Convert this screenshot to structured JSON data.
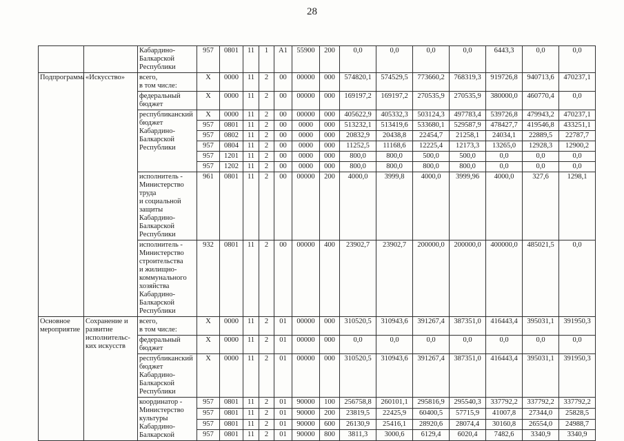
{
  "page": {
    "number": "28"
  },
  "table": {
    "sections": {
      "s1": {
        "category": "Подпрограмма",
        "name": "«Искусство»"
      },
      "s2": {
        "category": "Основное\nмероприятие",
        "name": "Сохранение и\nразвитие\nисполнительс-\nких искусств"
      }
    },
    "rows": {
      "r0": {
        "label": "Кабардино-\nБалкарской\nРеспублики",
        "codes": [
          "957",
          "0801",
          "11",
          "1",
          "А1",
          "55900",
          "200"
        ],
        "values": [
          "0,0",
          "0,0",
          "0,0",
          "0,0",
          "6443,3",
          "0,0",
          "0,0"
        ]
      },
      "r1": {
        "label": "всего,\nв том числе:",
        "codes": [
          "X",
          "0000",
          "11",
          "2",
          "00",
          "00000",
          "000"
        ],
        "values": [
          "574820,1",
          "574529,5",
          "773660,2",
          "768319,3",
          "919726,8",
          "940713,6",
          "470237,1"
        ]
      },
      "r2": {
        "label": "федеральный\nбюджет",
        "codes": [
          "X",
          "0000",
          "11",
          "2",
          "00",
          "00000",
          "000"
        ],
        "values": [
          "169197,2",
          "169197,2",
          "270535,9",
          "270535,9",
          "380000,0",
          "460770,4",
          "0,0"
        ]
      },
      "r3": {
        "label": "республиканский\nбюджет\nКабардино-\nБалкарской\nРеспублики"
      },
      "r3a": {
        "codes": [
          "X",
          "0000",
          "11",
          "2",
          "00",
          "00000",
          "000"
        ],
        "values": [
          "405622,9",
          "405332,3",
          "503124,3",
          "497783,4",
          "539726,8",
          "479943,2",
          "470237,1"
        ]
      },
      "r3b": {
        "codes": [
          "957",
          "0801",
          "11",
          "2",
          "00",
          "0000",
          "000"
        ],
        "values": [
          "513232,1",
          "513419,6",
          "533680,1",
          "529587,9",
          "478427,7",
          "419546,8",
          "433251,1"
        ]
      },
      "r3c": {
        "codes": [
          "957",
          "0802",
          "11",
          "2",
          "00",
          "0000",
          "000"
        ],
        "values": [
          "20832,9",
          "20438,8",
          "22454,7",
          "21258,1",
          "24034,1",
          "22889,5",
          "22787,7"
        ]
      },
      "r3d": {
        "codes": [
          "957",
          "0804",
          "11",
          "2",
          "00",
          "0000",
          "000"
        ],
        "values": [
          "11252,5",
          "11168,6",
          "12225,4",
          "12173,3",
          "13265,0",
          "12928,3",
          "12900,2"
        ]
      },
      "r3e": {
        "codes": [
          "957",
          "1201",
          "11",
          "2",
          "00",
          "0000",
          "000"
        ],
        "values": [
          "800,0",
          "800,0",
          "500,0",
          "500,0",
          "0,0",
          "0,0",
          "0,0"
        ]
      },
      "r3f": {
        "codes": [
          "957",
          "1202",
          "11",
          "2",
          "00",
          "0000",
          "000"
        ],
        "values": [
          "800,0",
          "800,0",
          "800,0",
          "800,0",
          "0,0",
          "0,0",
          "0,0"
        ]
      },
      "r4": {
        "label": "исполнитель -\nМинистерство\nтруда\nи социальной\nзащиты\nКабардино-\nБалкарской\nРеспублики",
        "codes": [
          "961",
          "0801",
          "11",
          "2",
          "00",
          "00000",
          "200"
        ],
        "values": [
          "4000,0",
          "3999,8",
          "4000,0",
          "3999,96",
          "4000,0",
          "327,6",
          "1298,1"
        ]
      },
      "r5": {
        "label": "исполнитель -\nМинистерство\nстроительства\nи жилищно-\nкоммунального\nхозяйства\nКабардино-\nБалкарской\nРеспублики",
        "codes": [
          "932",
          "0801",
          "11",
          "2",
          "00",
          "00000",
          "400"
        ],
        "values": [
          "23902,7",
          "23902,7",
          "200000,0",
          "200000,0",
          "400000,0",
          "485021,5",
          "0,0"
        ]
      },
      "r6": {
        "label": "всего,\nв том числе:",
        "codes": [
          "X",
          "0000",
          "11",
          "2",
          "01",
          "00000",
          "000"
        ],
        "values": [
          "310520,5",
          "310943,6",
          "391267,4",
          "387351,0",
          "416443,4",
          "395031,1",
          "391950,3"
        ]
      },
      "r7": {
        "label": "федеральный\nбюджет",
        "codes": [
          "X",
          "0000",
          "11",
          "2",
          "01",
          "00000",
          "000"
        ],
        "values": [
          "0,0",
          "0,0",
          "0,0",
          "0,0",
          "0,0",
          "0,0",
          "0,0"
        ]
      },
      "r8": {
        "label": "республиканский\nбюджет\nКабардино-\nБалкарской\nРеспублики",
        "codes": [
          "X",
          "0000",
          "11",
          "2",
          "01",
          "00000",
          "000"
        ],
        "values": [
          "310520,5",
          "310943,6",
          "391267,4",
          "387351,0",
          "416443,4",
          "395031,1",
          "391950,3"
        ]
      },
      "r9": {
        "label": "координатор -\nМинистерство\nкультуры\nКабардино-\nБалкарской"
      },
      "r9a": {
        "codes": [
          "957",
          "0801",
          "11",
          "2",
          "01",
          "90000",
          "100"
        ],
        "values": [
          "256758,8",
          "260101,1",
          "295816,9",
          "295540,3",
          "337792,2",
          "337792,2",
          "337792,2"
        ]
      },
      "r9b": {
        "codes": [
          "957",
          "0801",
          "11",
          "2",
          "01",
          "90000",
          "200"
        ],
        "values": [
          "23819,5",
          "22425,9",
          "60400,5",
          "57715,9",
          "41007,8",
          "27344,0",
          "25828,5"
        ]
      },
      "r9c": {
        "codes": [
          "957",
          "0801",
          "11",
          "2",
          "01",
          "90000",
          "600"
        ],
        "values": [
          "26130,9",
          "25416,1",
          "28920,6",
          "28074,4",
          "30160,8",
          "26554,0",
          "24988,7"
        ]
      },
      "r9d": {
        "codes": [
          "957",
          "0801",
          "11",
          "2",
          "01",
          "90000",
          "800"
        ],
        "values": [
          "3811,3",
          "3000,6",
          "6129,4",
          "6020,4",
          "7482,6",
          "3340,9",
          "3340,9"
        ]
      }
    }
  }
}
